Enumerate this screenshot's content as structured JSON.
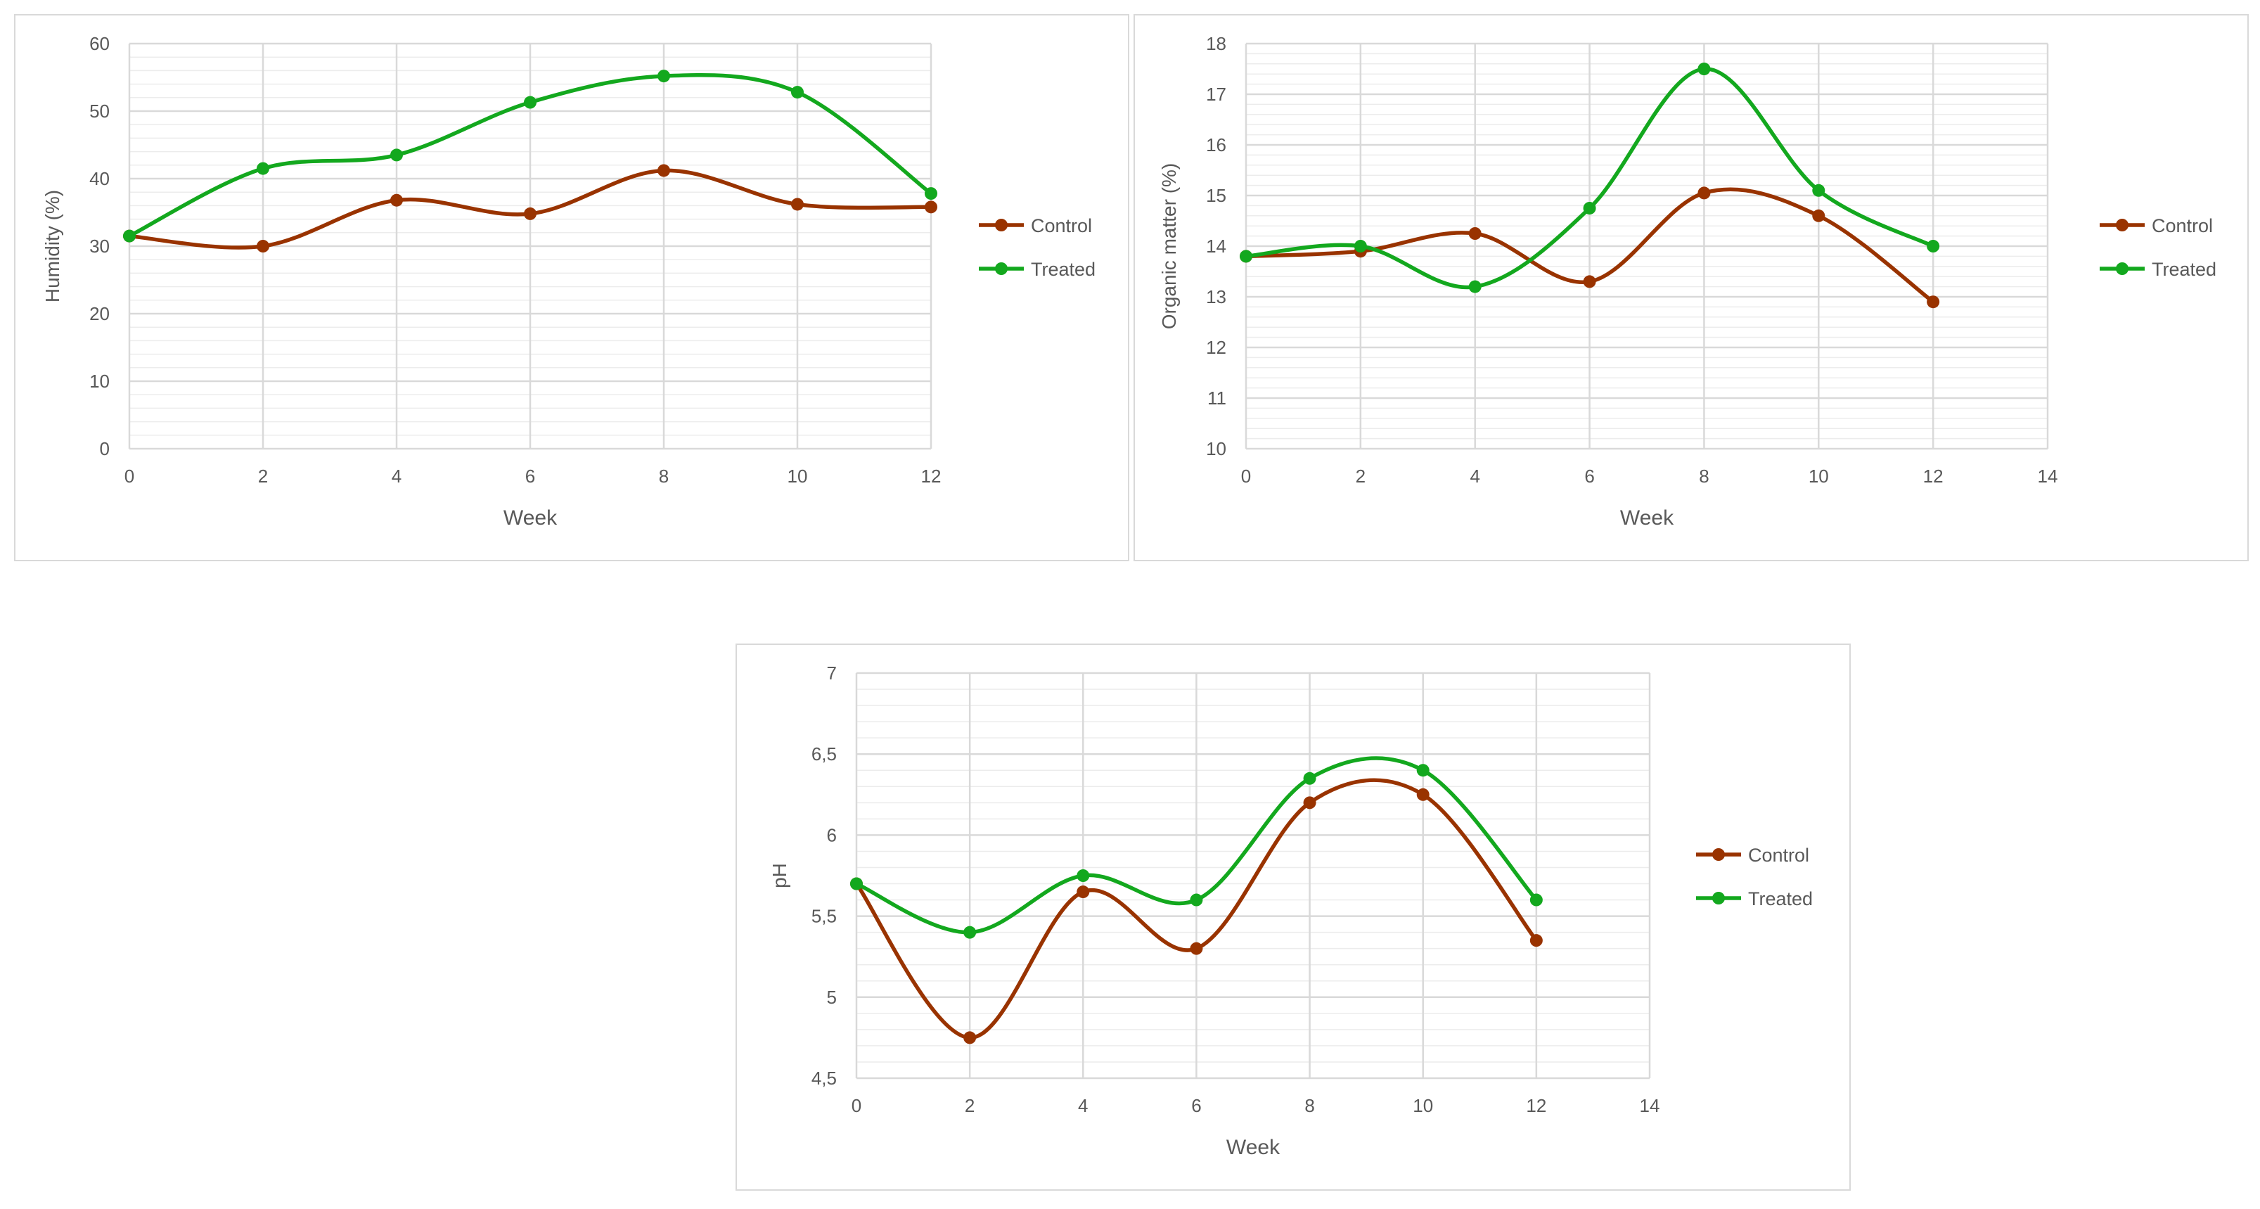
{
  "colors": {
    "control": "#993300",
    "treated": "#13a81e",
    "major_grid": "#d9d9d9",
    "minor_grid": "#ececec",
    "text": "#595959"
  },
  "chart_data": [
    {
      "type": "line",
      "smooth": true,
      "markers": true,
      "xlabel": "Week",
      "ylabel": "Humidity (%)",
      "xlim": [
        0,
        12
      ],
      "x_ticks": [
        "0",
        "2",
        "4",
        "6",
        "8",
        "10",
        "12"
      ],
      "ylim": [
        0,
        60
      ],
      "y_ticks": [
        "0",
        "10",
        "20",
        "30",
        "40",
        "50",
        "60"
      ],
      "grid": true,
      "legend": "right",
      "x": [
        0,
        2,
        4,
        6,
        8,
        10,
        12
      ],
      "series": [
        {
          "name": "Control",
          "color": "#993300",
          "values": [
            31.5,
            30,
            36.8,
            34.8,
            41.2,
            36.2,
            35.8
          ]
        },
        {
          "name": "Treated",
          "color": "#13a81e",
          "values": [
            31.5,
            41.5,
            43.5,
            51.3,
            55.2,
            52.8,
            37.8
          ]
        }
      ]
    },
    {
      "type": "line",
      "smooth": true,
      "markers": true,
      "xlabel": "Week",
      "ylabel": "Organic matter (%)",
      "xlim": [
        0,
        14
      ],
      "x_ticks": [
        "0",
        "2",
        "4",
        "6",
        "8",
        "10",
        "12",
        "14"
      ],
      "ylim": [
        10,
        18
      ],
      "y_ticks": [
        "10",
        "11",
        "12",
        "13",
        "14",
        "15",
        "16",
        "17",
        "18"
      ],
      "grid": true,
      "legend": "right",
      "x": [
        0,
        2,
        4,
        6,
        8,
        10,
        12
      ],
      "series": [
        {
          "name": "Control",
          "color": "#993300",
          "values": [
            13.8,
            13.9,
            14.25,
            13.3,
            15.05,
            14.6,
            12.9
          ]
        },
        {
          "name": "Treated",
          "color": "#13a81e",
          "values": [
            13.8,
            14.0,
            13.2,
            14.75,
            17.5,
            15.1,
            14.0
          ]
        }
      ]
    },
    {
      "type": "line",
      "smooth": true,
      "markers": true,
      "xlabel": "Week",
      "ylabel": "pH",
      "xlim": [
        0,
        14
      ],
      "x_ticks": [
        "0",
        "2",
        "4",
        "6",
        "8",
        "10",
        "12",
        "14"
      ],
      "ylim": [
        4.5,
        7
      ],
      "y_ticks": [
        "4,5",
        "5",
        "5,5",
        "6",
        "6,5",
        "7"
      ],
      "grid": true,
      "legend": "right",
      "x": [
        0,
        2,
        4,
        6,
        8,
        10,
        12
      ],
      "series": [
        {
          "name": "Control",
          "color": "#993300",
          "values": [
            5.7,
            4.75,
            5.65,
            5.3,
            6.2,
            6.25,
            5.35
          ]
        },
        {
          "name": "Treated",
          "color": "#13a81e",
          "values": [
            5.7,
            5.4,
            5.75,
            5.6,
            6.35,
            6.4,
            5.6
          ]
        }
      ]
    }
  ]
}
